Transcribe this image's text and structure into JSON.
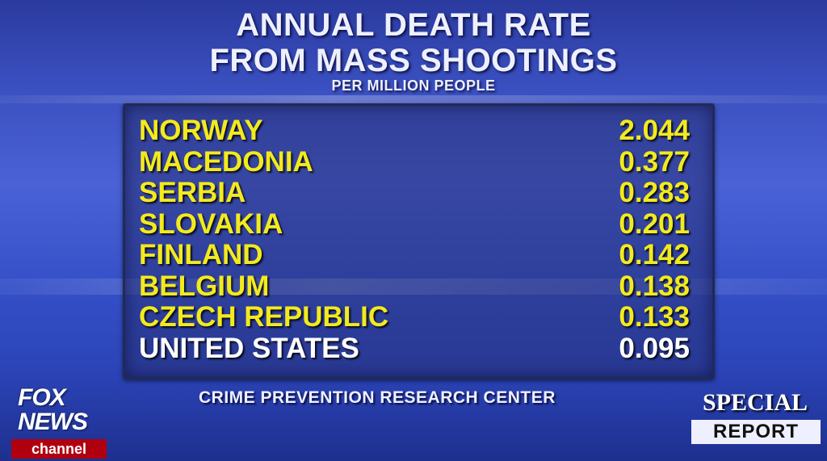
{
  "chart_data": {
    "type": "table",
    "title": "ANNUAL DEATH RATE",
    "title_line2": "FROM MASS SHOOTINGS",
    "subtitle": "PER MILLION PEOPLE",
    "rows": [
      {
        "name": "NORWAY",
        "value": "2.044",
        "color": "#f2ea1e"
      },
      {
        "name": "MACEDONIA",
        "value": "0.377",
        "color": "#f2ea1e"
      },
      {
        "name": "SERBIA",
        "value": "0.283",
        "color": "#f2ea1e"
      },
      {
        "name": "SLOVAKIA",
        "value": "0.201",
        "color": "#f2ea1e"
      },
      {
        "name": "FINLAND",
        "value": "0.142",
        "color": "#f2ea1e"
      },
      {
        "name": "BELGIUM",
        "value": "0.138",
        "color": "#f2ea1e"
      },
      {
        "name": "CZECH REPUBLIC",
        "value": "0.133",
        "color": "#f2ea1e"
      },
      {
        "name": "UNITED STATES",
        "value": "0.095",
        "color": "#ffffff"
      }
    ],
    "source": "CRIME PREVENTION RESEARCH CENTER"
  },
  "branding": {
    "network": "FOX NEWS",
    "channel": "channel",
    "show_line1": "SPECIAL",
    "show_line2": "REPORT"
  }
}
